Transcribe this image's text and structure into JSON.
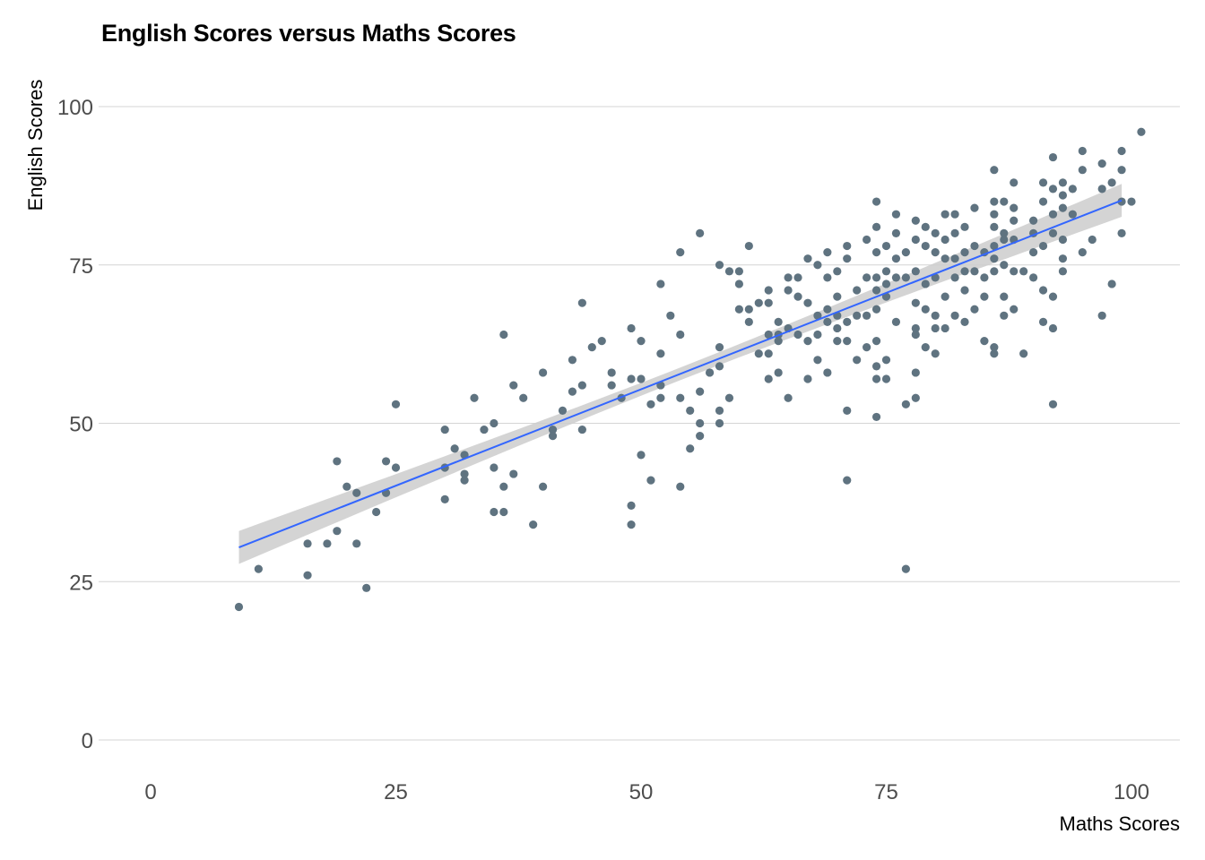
{
  "chart_data": {
    "type": "scatter",
    "title": "English Scores versus Maths Scores",
    "xlabel": "Maths Scores",
    "ylabel": "English Scores",
    "xlim": [
      0,
      100
    ],
    "ylim": [
      0,
      100
    ],
    "x_ticks": [
      "0",
      "25",
      "50",
      "75",
      "100"
    ],
    "y_ticks": [
      "0",
      "25",
      "50",
      "75",
      "100"
    ],
    "grid": "horizontal major gridlines",
    "colors": {
      "points": "#5f7380",
      "fit_line": "#3366ff",
      "confidence_band": "#cccccc",
      "grid": "#d4d4d4"
    },
    "trend": {
      "type": "linear",
      "x_range": [
        9,
        99
      ],
      "y_start": 30.4,
      "y_end": 85.2,
      "band_at_ends": 2.6,
      "band_at_center": 1.0
    },
    "points": [
      [
        9,
        21
      ],
      [
        11,
        27
      ],
      [
        16,
        31
      ],
      [
        16,
        26
      ],
      [
        18,
        31
      ],
      [
        19,
        44
      ],
      [
        19,
        33
      ],
      [
        20,
        40
      ],
      [
        21,
        39
      ],
      [
        21,
        31
      ],
      [
        22,
        24
      ],
      [
        23,
        36
      ],
      [
        24,
        44
      ],
      [
        24,
        39
      ],
      [
        25,
        53
      ],
      [
        25,
        43
      ],
      [
        30,
        49
      ],
      [
        30,
        43
      ],
      [
        30,
        38
      ],
      [
        31,
        46
      ],
      [
        32,
        45
      ],
      [
        32,
        42
      ],
      [
        32,
        41
      ],
      [
        33,
        54
      ],
      [
        34,
        49
      ],
      [
        35,
        50
      ],
      [
        35,
        43
      ],
      [
        35,
        36
      ],
      [
        36,
        64
      ],
      [
        36,
        40
      ],
      [
        36,
        36
      ],
      [
        37,
        56
      ],
      [
        37,
        42
      ],
      [
        38,
        54
      ],
      [
        39,
        34
      ],
      [
        40,
        58
      ],
      [
        40,
        40
      ],
      [
        41,
        49
      ],
      [
        41,
        48
      ],
      [
        42,
        52
      ],
      [
        43,
        60
      ],
      [
        43,
        55
      ],
      [
        44,
        69
      ],
      [
        44,
        56
      ],
      [
        44,
        49
      ],
      [
        45,
        62
      ],
      [
        46,
        63
      ],
      [
        47,
        58
      ],
      [
        47,
        56
      ],
      [
        48,
        54
      ],
      [
        49,
        65
      ],
      [
        49,
        57
      ],
      [
        49,
        37
      ],
      [
        49,
        34
      ],
      [
        50,
        63
      ],
      [
        50,
        57
      ],
      [
        50,
        45
      ],
      [
        51,
        53
      ],
      [
        51,
        41
      ],
      [
        52,
        72
      ],
      [
        52,
        61
      ],
      [
        52,
        56
      ],
      [
        52,
        54
      ],
      [
        53,
        67
      ],
      [
        54,
        77
      ],
      [
        54,
        64
      ],
      [
        54,
        54
      ],
      [
        54,
        40
      ],
      [
        55,
        52
      ],
      [
        55,
        46
      ],
      [
        56,
        80
      ],
      [
        56,
        55
      ],
      [
        56,
        50
      ],
      [
        56,
        48
      ],
      [
        57,
        58
      ],
      [
        58,
        75
      ],
      [
        58,
        62
      ],
      [
        58,
        59
      ],
      [
        58,
        52
      ],
      [
        58,
        50
      ],
      [
        59,
        74
      ],
      [
        59,
        54
      ],
      [
        60,
        74
      ],
      [
        60,
        72
      ],
      [
        60,
        68
      ],
      [
        61,
        78
      ],
      [
        61,
        68
      ],
      [
        61,
        66
      ],
      [
        62,
        69
      ],
      [
        62,
        61
      ],
      [
        63,
        71
      ],
      [
        63,
        69
      ],
      [
        63,
        64
      ],
      [
        63,
        61
      ],
      [
        63,
        57
      ],
      [
        64,
        66
      ],
      [
        64,
        64
      ],
      [
        64,
        63
      ],
      [
        64,
        58
      ],
      [
        65,
        73
      ],
      [
        65,
        71
      ],
      [
        65,
        65
      ],
      [
        65,
        54
      ],
      [
        66,
        73
      ],
      [
        66,
        70
      ],
      [
        66,
        64
      ],
      [
        67,
        76
      ],
      [
        67,
        69
      ],
      [
        67,
        63
      ],
      [
        67,
        57
      ],
      [
        68,
        75
      ],
      [
        68,
        67
      ],
      [
        68,
        64
      ],
      [
        68,
        60
      ],
      [
        69,
        77
      ],
      [
        69,
        73
      ],
      [
        69,
        68
      ],
      [
        69,
        66
      ],
      [
        69,
        58
      ],
      [
        70,
        74
      ],
      [
        70,
        70
      ],
      [
        70,
        67
      ],
      [
        70,
        65
      ],
      [
        70,
        63
      ],
      [
        71,
        78
      ],
      [
        71,
        76
      ],
      [
        71,
        66
      ],
      [
        71,
        63
      ],
      [
        71,
        52
      ],
      [
        71,
        41
      ],
      [
        72,
        71
      ],
      [
        72,
        67
      ],
      [
        72,
        60
      ],
      [
        73,
        79
      ],
      [
        73,
        73
      ],
      [
        73,
        67
      ],
      [
        73,
        62
      ],
      [
        74,
        85
      ],
      [
        74,
        81
      ],
      [
        74,
        77
      ],
      [
        74,
        73
      ],
      [
        74,
        71
      ],
      [
        74,
        68
      ],
      [
        74,
        63
      ],
      [
        74,
        59
      ],
      [
        74,
        57
      ],
      [
        74,
        51
      ],
      [
        75,
        78
      ],
      [
        75,
        74
      ],
      [
        75,
        72
      ],
      [
        75,
        70
      ],
      [
        75,
        60
      ],
      [
        75,
        57
      ],
      [
        76,
        83
      ],
      [
        76,
        80
      ],
      [
        76,
        76
      ],
      [
        76,
        73
      ],
      [
        76,
        66
      ],
      [
        77,
        77
      ],
      [
        77,
        73
      ],
      [
        77,
        53
      ],
      [
        77,
        27
      ],
      [
        78,
        82
      ],
      [
        78,
        79
      ],
      [
        78,
        74
      ],
      [
        78,
        69
      ],
      [
        78,
        65
      ],
      [
        78,
        64
      ],
      [
        78,
        58
      ],
      [
        78,
        54
      ],
      [
        79,
        81
      ],
      [
        79,
        78
      ],
      [
        79,
        72
      ],
      [
        79,
        68
      ],
      [
        79,
        62
      ],
      [
        80,
        80
      ],
      [
        80,
        77
      ],
      [
        80,
        73
      ],
      [
        80,
        67
      ],
      [
        80,
        65
      ],
      [
        80,
        61
      ],
      [
        81,
        83
      ],
      [
        81,
        79
      ],
      [
        81,
        76
      ],
      [
        81,
        70
      ],
      [
        81,
        65
      ],
      [
        82,
        83
      ],
      [
        82,
        80
      ],
      [
        82,
        76
      ],
      [
        82,
        73
      ],
      [
        82,
        67
      ],
      [
        83,
        81
      ],
      [
        83,
        77
      ],
      [
        83,
        74
      ],
      [
        83,
        71
      ],
      [
        83,
        66
      ],
      [
        84,
        84
      ],
      [
        84,
        78
      ],
      [
        84,
        74
      ],
      [
        84,
        68
      ],
      [
        85,
        77
      ],
      [
        85,
        73
      ],
      [
        85,
        70
      ],
      [
        85,
        63
      ],
      [
        86,
        90
      ],
      [
        86,
        85
      ],
      [
        86,
        83
      ],
      [
        86,
        81
      ],
      [
        86,
        78
      ],
      [
        86,
        76
      ],
      [
        86,
        74
      ],
      [
        86,
        62
      ],
      [
        86,
        61
      ],
      [
        87,
        85
      ],
      [
        87,
        80
      ],
      [
        87,
        79
      ],
      [
        87,
        75
      ],
      [
        87,
        70
      ],
      [
        87,
        67
      ],
      [
        88,
        88
      ],
      [
        88,
        84
      ],
      [
        88,
        82
      ],
      [
        88,
        79
      ],
      [
        88,
        74
      ],
      [
        88,
        68
      ],
      [
        89,
        74
      ],
      [
        89,
        61
      ],
      [
        90,
        82
      ],
      [
        90,
        80
      ],
      [
        90,
        77
      ],
      [
        90,
        73
      ],
      [
        91,
        88
      ],
      [
        91,
        85
      ],
      [
        91,
        78
      ],
      [
        91,
        71
      ],
      [
        91,
        66
      ],
      [
        92,
        92
      ],
      [
        92,
        87
      ],
      [
        92,
        83
      ],
      [
        92,
        80
      ],
      [
        92,
        70
      ],
      [
        92,
        65
      ],
      [
        92,
        53
      ],
      [
        93,
        88
      ],
      [
        93,
        86
      ],
      [
        93,
        84
      ],
      [
        93,
        79
      ],
      [
        93,
        76
      ],
      [
        93,
        74
      ],
      [
        94,
        87
      ],
      [
        94,
        83
      ],
      [
        95,
        93
      ],
      [
        95,
        90
      ],
      [
        95,
        77
      ],
      [
        96,
        79
      ],
      [
        97,
        91
      ],
      [
        97,
        87
      ],
      [
        97,
        67
      ],
      [
        98,
        72
      ],
      [
        98,
        88
      ],
      [
        99,
        93
      ],
      [
        99,
        90
      ],
      [
        99,
        85
      ],
      [
        99,
        80
      ],
      [
        100,
        85
      ],
      [
        101,
        96
      ]
    ]
  }
}
